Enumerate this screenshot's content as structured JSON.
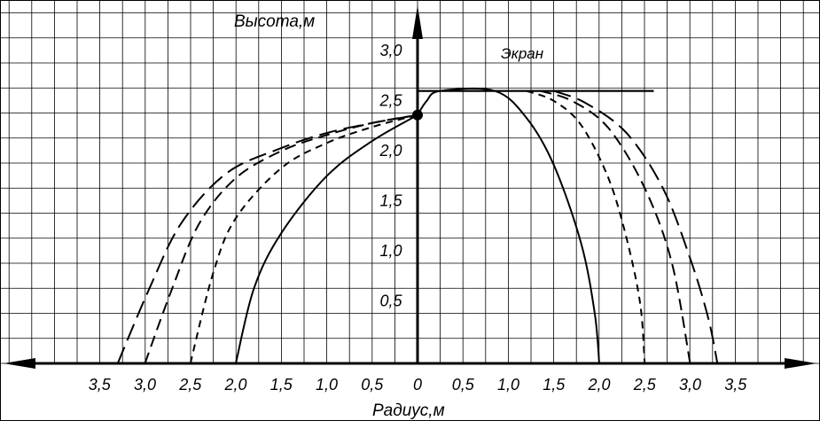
{
  "chart_data": {
    "type": "line",
    "title": "",
    "xlabel": "Радиус,м",
    "ylabel": "Высота,м",
    "screen_label": "Экран",
    "xlim": [
      -3.5,
      3.5
    ],
    "ylim": [
      0,
      3.0
    ],
    "grid": true,
    "x_tick_labels": [
      "3,5",
      "3,0",
      "2,5",
      "2,0",
      "1,5",
      "1,0",
      "0,5",
      "0",
      "0,5",
      "1,0",
      "1,5",
      "2,0",
      "2,5",
      "3,0",
      "3,5"
    ],
    "y_tick_labels": [
      "0,5",
      "1,0",
      "1,5",
      "2,0",
      "2,5",
      "3,0"
    ],
    "nozzle_point": {
      "x": 0,
      "y": 2.48
    },
    "screen": {
      "x_start": 0,
      "x_end": 2.6,
      "y": 2.72
    },
    "series": [
      {
        "style": "solid",
        "left": [
          [
            -2.0,
            0
          ],
          [
            -1.8,
            0.75
          ],
          [
            -1.5,
            1.3
          ],
          [
            -1.0,
            1.87
          ],
          [
            -0.5,
            2.22
          ],
          [
            0,
            2.48
          ]
        ],
        "right": [
          [
            0,
            2.48
          ],
          [
            0.1,
            2.62
          ],
          [
            0.25,
            2.72
          ],
          [
            0.85,
            2.72
          ],
          [
            1.2,
            2.45
          ],
          [
            1.5,
            1.98
          ],
          [
            1.8,
            1.2
          ],
          [
            1.95,
            0.5
          ],
          [
            2.0,
            0
          ]
        ]
      },
      {
        "style": "short-dash",
        "left": [
          [
            -2.5,
            0
          ],
          [
            -2.25,
            0.9
          ],
          [
            -2.0,
            1.45
          ],
          [
            -1.5,
            1.95
          ],
          [
            -1.0,
            2.2
          ],
          [
            -0.5,
            2.36
          ],
          [
            0,
            2.48
          ]
        ],
        "right": [
          [
            1.2,
            2.72
          ],
          [
            1.5,
            2.62
          ],
          [
            1.8,
            2.38
          ],
          [
            2.1,
            1.85
          ],
          [
            2.3,
            1.25
          ],
          [
            2.45,
            0.6
          ],
          [
            2.5,
            0
          ]
        ]
      },
      {
        "style": "medium-dash",
        "left": [
          [
            -3.0,
            0
          ],
          [
            -2.7,
            0.75
          ],
          [
            -2.4,
            1.4
          ],
          [
            -2.0,
            1.85
          ],
          [
            -1.5,
            2.12
          ],
          [
            -1.0,
            2.28
          ],
          [
            -0.5,
            2.4
          ],
          [
            0,
            2.48
          ]
        ],
        "right": [
          [
            1.35,
            2.72
          ],
          [
            1.7,
            2.62
          ],
          [
            2.1,
            2.35
          ],
          [
            2.5,
            1.75
          ],
          [
            2.8,
            1.0
          ],
          [
            3.0,
            0
          ]
        ]
      },
      {
        "style": "long-dash",
        "left": [
          [
            -3.3,
            0
          ],
          [
            -2.95,
            0.75
          ],
          [
            -2.6,
            1.4
          ],
          [
            -2.1,
            1.9
          ],
          [
            -1.5,
            2.15
          ],
          [
            -1.0,
            2.3
          ],
          [
            -0.5,
            2.4
          ],
          [
            0,
            2.48
          ]
        ],
        "right": [
          [
            1.5,
            2.72
          ],
          [
            1.85,
            2.6
          ],
          [
            2.3,
            2.3
          ],
          [
            2.7,
            1.75
          ],
          [
            3.0,
            1.05
          ],
          [
            3.2,
            0.45
          ],
          [
            3.3,
            0
          ]
        ]
      }
    ]
  }
}
